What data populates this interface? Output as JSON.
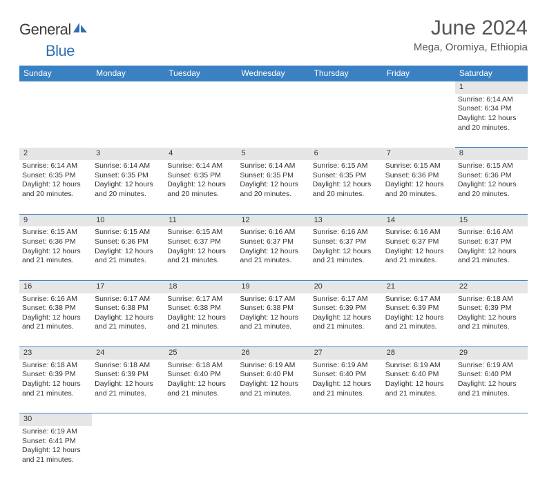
{
  "logo": {
    "part1": "General",
    "part2": "Blue"
  },
  "title": "June 2024",
  "location": "Mega, Oromiya, Ethiopia",
  "colors": {
    "header_bg": "#3a81c4",
    "daynum_bg": "#e6e6e6",
    "divider": "#3a81c4",
    "logo_gray": "#3a3a3a",
    "logo_blue": "#2f6fb4"
  },
  "weekdays": [
    "Sunday",
    "Monday",
    "Tuesday",
    "Wednesday",
    "Thursday",
    "Friday",
    "Saturday"
  ],
  "weeks": [
    {
      "nums": [
        "",
        "",
        "",
        "",
        "",
        "",
        "1"
      ],
      "cells": [
        "",
        "",
        "",
        "",
        "",
        "",
        "Sunrise: 6:14 AM\nSunset: 6:34 PM\nDaylight: 12 hours and 20 minutes."
      ]
    },
    {
      "nums": [
        "2",
        "3",
        "4",
        "5",
        "6",
        "7",
        "8"
      ],
      "cells": [
        "Sunrise: 6:14 AM\nSunset: 6:35 PM\nDaylight: 12 hours and 20 minutes.",
        "Sunrise: 6:14 AM\nSunset: 6:35 PM\nDaylight: 12 hours and 20 minutes.",
        "Sunrise: 6:14 AM\nSunset: 6:35 PM\nDaylight: 12 hours and 20 minutes.",
        "Sunrise: 6:14 AM\nSunset: 6:35 PM\nDaylight: 12 hours and 20 minutes.",
        "Sunrise: 6:15 AM\nSunset: 6:35 PM\nDaylight: 12 hours and 20 minutes.",
        "Sunrise: 6:15 AM\nSunset: 6:36 PM\nDaylight: 12 hours and 20 minutes.",
        "Sunrise: 6:15 AM\nSunset: 6:36 PM\nDaylight: 12 hours and 20 minutes."
      ]
    },
    {
      "nums": [
        "9",
        "10",
        "11",
        "12",
        "13",
        "14",
        "15"
      ],
      "cells": [
        "Sunrise: 6:15 AM\nSunset: 6:36 PM\nDaylight: 12 hours and 21 minutes.",
        "Sunrise: 6:15 AM\nSunset: 6:36 PM\nDaylight: 12 hours and 21 minutes.",
        "Sunrise: 6:15 AM\nSunset: 6:37 PM\nDaylight: 12 hours and 21 minutes.",
        "Sunrise: 6:16 AM\nSunset: 6:37 PM\nDaylight: 12 hours and 21 minutes.",
        "Sunrise: 6:16 AM\nSunset: 6:37 PM\nDaylight: 12 hours and 21 minutes.",
        "Sunrise: 6:16 AM\nSunset: 6:37 PM\nDaylight: 12 hours and 21 minutes.",
        "Sunrise: 6:16 AM\nSunset: 6:37 PM\nDaylight: 12 hours and 21 minutes."
      ]
    },
    {
      "nums": [
        "16",
        "17",
        "18",
        "19",
        "20",
        "21",
        "22"
      ],
      "cells": [
        "Sunrise: 6:16 AM\nSunset: 6:38 PM\nDaylight: 12 hours and 21 minutes.",
        "Sunrise: 6:17 AM\nSunset: 6:38 PM\nDaylight: 12 hours and 21 minutes.",
        "Sunrise: 6:17 AM\nSunset: 6:38 PM\nDaylight: 12 hours and 21 minutes.",
        "Sunrise: 6:17 AM\nSunset: 6:38 PM\nDaylight: 12 hours and 21 minutes.",
        "Sunrise: 6:17 AM\nSunset: 6:39 PM\nDaylight: 12 hours and 21 minutes.",
        "Sunrise: 6:17 AM\nSunset: 6:39 PM\nDaylight: 12 hours and 21 minutes.",
        "Sunrise: 6:18 AM\nSunset: 6:39 PM\nDaylight: 12 hours and 21 minutes."
      ]
    },
    {
      "nums": [
        "23",
        "24",
        "25",
        "26",
        "27",
        "28",
        "29"
      ],
      "cells": [
        "Sunrise: 6:18 AM\nSunset: 6:39 PM\nDaylight: 12 hours and 21 minutes.",
        "Sunrise: 6:18 AM\nSunset: 6:39 PM\nDaylight: 12 hours and 21 minutes.",
        "Sunrise: 6:18 AM\nSunset: 6:40 PM\nDaylight: 12 hours and 21 minutes.",
        "Sunrise: 6:19 AM\nSunset: 6:40 PM\nDaylight: 12 hours and 21 minutes.",
        "Sunrise: 6:19 AM\nSunset: 6:40 PM\nDaylight: 12 hours and 21 minutes.",
        "Sunrise: 6:19 AM\nSunset: 6:40 PM\nDaylight: 12 hours and 21 minutes.",
        "Sunrise: 6:19 AM\nSunset: 6:40 PM\nDaylight: 12 hours and 21 minutes."
      ]
    },
    {
      "nums": [
        "30",
        "",
        "",
        "",
        "",
        "",
        ""
      ],
      "cells": [
        "Sunrise: 6:19 AM\nSunset: 6:41 PM\nDaylight: 12 hours and 21 minutes.",
        "",
        "",
        "",
        "",
        "",
        ""
      ]
    }
  ]
}
